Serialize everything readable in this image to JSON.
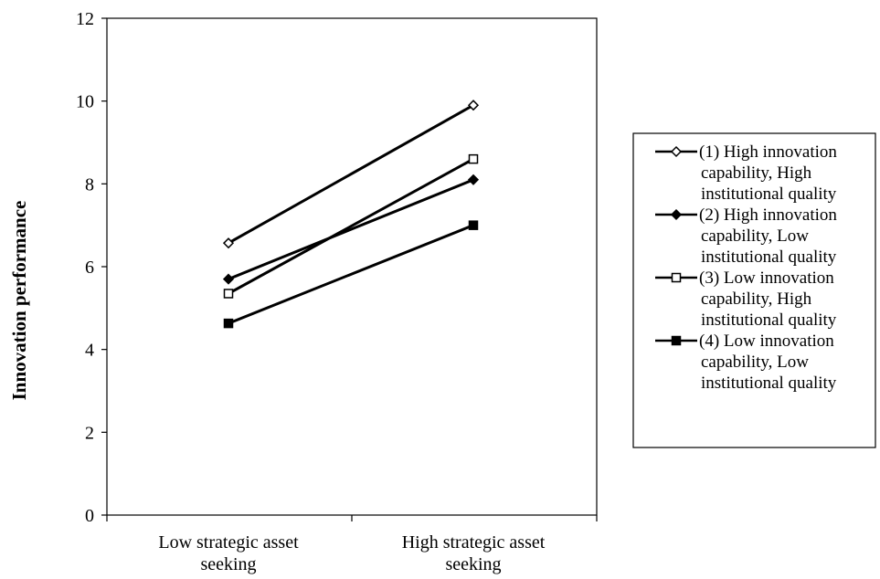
{
  "chart_data": {
    "type": "line",
    "title": "",
    "xlabel": "",
    "ylabel": "Innovation performance",
    "ylim": [
      0,
      12
    ],
    "yticks": [
      0,
      2,
      4,
      6,
      8,
      10,
      12
    ],
    "grid": false,
    "legend_position": "right",
    "categories": [
      [
        "Low strategic asset",
        "seeking"
      ],
      [
        "High strategic asset",
        "seeking"
      ]
    ],
    "series": [
      {
        "name": "(1) High innovation capability, High institutional quality",
        "legend_lines": [
          "(1) High innovation",
          "capability, High",
          "institutional quality"
        ],
        "marker": "diamond-open",
        "values": [
          6.57,
          9.9
        ]
      },
      {
        "name": "(2) High innovation capability, Low institutional quality",
        "legend_lines": [
          "(2) High innovation",
          "capability, Low",
          "institutional quality"
        ],
        "marker": "diamond-filled",
        "values": [
          5.7,
          8.1
        ]
      },
      {
        "name": "(3) Low innovation capability, High institutional quality",
        "legend_lines": [
          "(3) Low innovation",
          "capability, High",
          "institutional quality"
        ],
        "marker": "square-open",
        "values": [
          5.35,
          8.6
        ]
      },
      {
        "name": "(4) Low innovation capability, Low institutional quality",
        "legend_lines": [
          "(4) Low innovation",
          "capability, Low",
          "institutional quality"
        ],
        "marker": "square-filled",
        "values": [
          4.63,
          7.0
        ]
      }
    ]
  }
}
